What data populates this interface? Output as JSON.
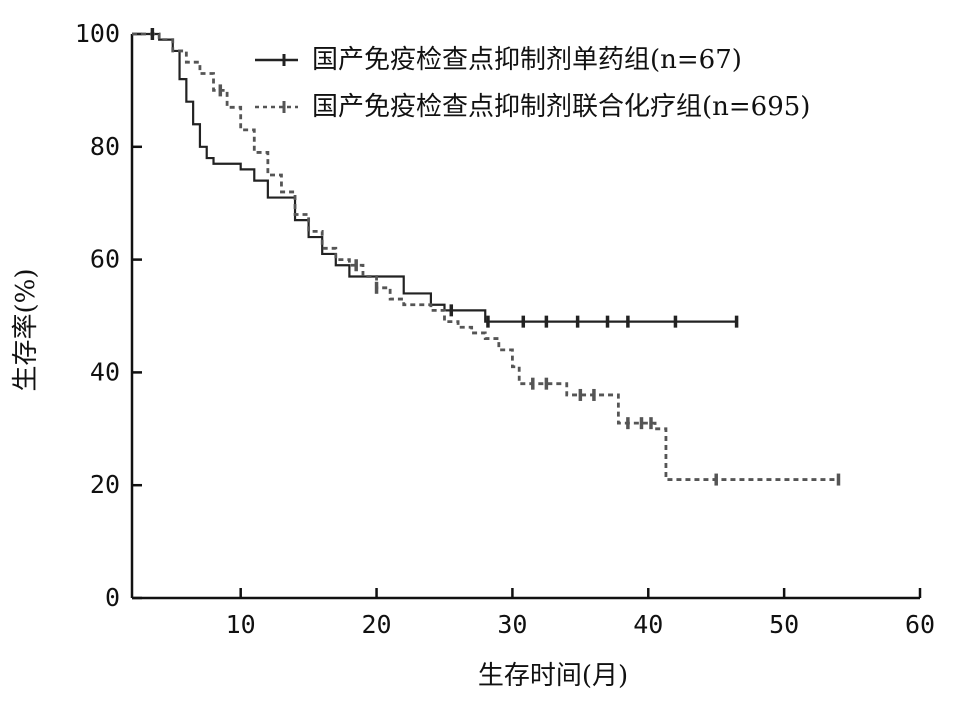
{
  "watermark": "",
  "chart_data": {
    "type": "line",
    "subtype": "kaplan-meier",
    "title": "",
    "xlabel": "生存时间(月)",
    "ylabel": "生存率(%)",
    "xlim": [
      2,
      60
    ],
    "ylim": [
      0,
      100
    ],
    "xticks": [
      10,
      20,
      30,
      40,
      50,
      60
    ],
    "yticks": [
      0,
      20,
      40,
      60,
      80,
      100
    ],
    "grid": false,
    "legend_position": "top-right",
    "series": [
      {
        "name": "国产免疫检查点抑制剂单药组(n=67)",
        "style": "solid",
        "color": "#222222",
        "step_points": [
          [
            2,
            100
          ],
          [
            3,
            100
          ],
          [
            4,
            99
          ],
          [
            5,
            97
          ],
          [
            5.5,
            92
          ],
          [
            6,
            88
          ],
          [
            6.5,
            84
          ],
          [
            7,
            80
          ],
          [
            7.5,
            78
          ],
          [
            8,
            77
          ],
          [
            10,
            76
          ],
          [
            11,
            74
          ],
          [
            12,
            71
          ],
          [
            14,
            67
          ],
          [
            15,
            64
          ],
          [
            16,
            61
          ],
          [
            17,
            59
          ],
          [
            18,
            57
          ],
          [
            21,
            57
          ],
          [
            22,
            54
          ],
          [
            24,
            52
          ],
          [
            25,
            51
          ],
          [
            26.5,
            51
          ],
          [
            28,
            49
          ],
          [
            46.5,
            49
          ]
        ],
        "censor_x": [
          3.5,
          25.5,
          28.2,
          30.8,
          32.5,
          34.8,
          37.0,
          38.5,
          42.0,
          46.5
        ]
      },
      {
        "name": "国产免疫检查点抑制剂联合化疗组(n=695)",
        "style": "dashed",
        "color": "#555555",
        "step_points": [
          [
            2,
            100
          ],
          [
            4,
            99
          ],
          [
            5,
            97
          ],
          [
            6,
            95
          ],
          [
            7,
            93
          ],
          [
            8,
            90
          ],
          [
            9,
            87
          ],
          [
            10,
            83
          ],
          [
            11,
            79
          ],
          [
            12,
            75
          ],
          [
            13,
            72
          ],
          [
            14,
            68
          ],
          [
            15,
            65
          ],
          [
            16,
            62
          ],
          [
            17,
            60
          ],
          [
            18,
            59
          ],
          [
            19,
            57
          ],
          [
            20,
            55
          ],
          [
            21,
            53
          ],
          [
            22,
            52
          ],
          [
            24,
            51
          ],
          [
            25,
            49
          ],
          [
            26,
            48
          ],
          [
            27,
            47
          ],
          [
            28,
            46
          ],
          [
            29,
            44
          ],
          [
            30,
            41
          ],
          [
            30.5,
            38
          ],
          [
            33,
            38
          ],
          [
            34,
            36
          ],
          [
            37.5,
            36
          ],
          [
            37.8,
            31
          ],
          [
            40.5,
            30
          ],
          [
            41.3,
            21
          ],
          [
            54,
            21
          ]
        ],
        "censor_x": [
          8.5,
          18.5,
          20.0,
          31.5,
          32.5,
          35.0,
          36.0,
          38.5,
          39.5,
          40.2,
          45.0,
          54.0
        ]
      }
    ]
  }
}
